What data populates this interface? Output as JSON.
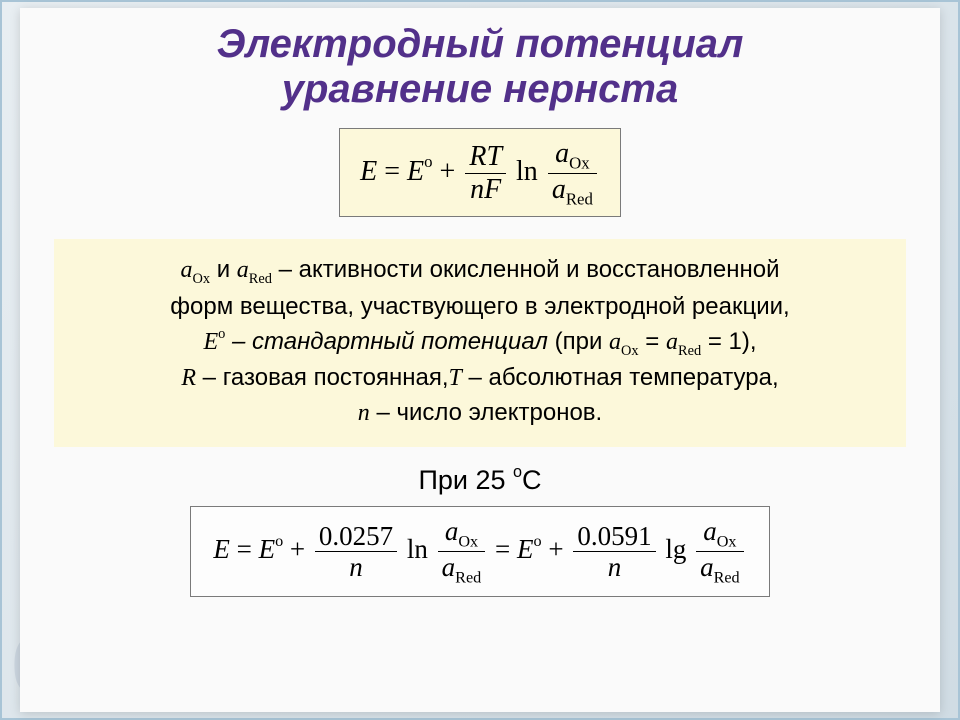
{
  "title": {
    "line1": "Электродный потенциал",
    "line2": "уравнение нернста",
    "color": "#52308a",
    "fontsize": 40
  },
  "equation1": {
    "lhs": "E",
    "eq": " = ",
    "E0": "E",
    "plus": " + ",
    "frac_top": "RT",
    "frac_bot": "nF",
    "ln": "ln",
    "ratio_top_sym": "a",
    "ratio_top_sub": "Ox",
    "ratio_bot_sym": "a",
    "ratio_bot_sub": "Red",
    "border_color": "#7a7a7a",
    "bg_color": "#fcf8da"
  },
  "description": {
    "bg_color": "#fcf8da",
    "a_ox_sym": "a",
    "a_ox_sub": "Ox",
    "and": " и ",
    "a_red_sym": "a",
    "a_red_sub": "Red",
    "l1_tail": " – активности окисленной и восстановленной",
    "l2": "форм вещества, участвующего в электродной реакции,",
    "l3_E": "E",
    "l3_deg": "о",
    "l3_std": " – стандартный потенциал",
    "l3_open": " (при ",
    "l3_aox_sym": "a",
    "l3_aox_sub": "Ox",
    "l3_eq1": " = ",
    "l3_ared_sym": "a",
    "l3_ared_sub": "Red",
    "l3_eq2": " = 1),",
    "l4_R": "R",
    "l4_gas": " – газовая постоянная,",
    "l4_T": "T",
    "l4_temp": " – абсолютная температура,",
    "l5_n": "n",
    "l5_elec": " – число электронов."
  },
  "temp_label": {
    "pre": "При 25 ",
    "deg": "о",
    "C": "С"
  },
  "equation2": {
    "E": "E",
    "eq": " = ",
    "E0": "E",
    "plus": " + ",
    "const1": "0.0257",
    "n": "n",
    "ln": "ln",
    "a": "a",
    "ox": "Ox",
    "red": "Red",
    "eq2": " = ",
    "E02": "E",
    "const2": "0.0591",
    "lg": "lg",
    "border_color": "#7a7a7a",
    "bg_color": "#fdfdfd"
  }
}
